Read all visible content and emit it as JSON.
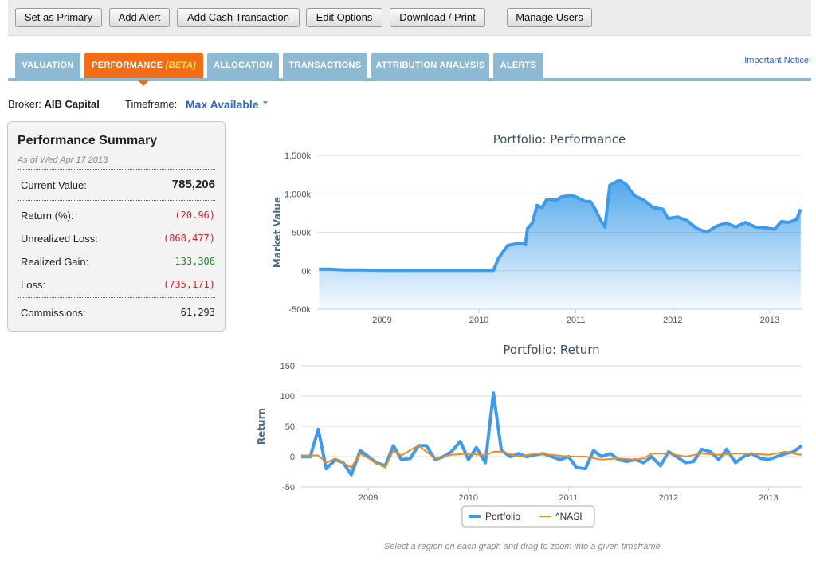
{
  "toolbar": {
    "buttons": [
      "Set as Primary",
      "Add Alert",
      "Add Cash Transaction",
      "Edit Options",
      "Download / Print",
      "Manage Users"
    ]
  },
  "tabs": [
    {
      "label": "VALUATION",
      "active": false
    },
    {
      "label": "PERFORMANCE",
      "badge": "(BETA)",
      "active": true
    },
    {
      "label": "ALLOCATION",
      "active": false
    },
    {
      "label": "TRANSACTIONS",
      "active": false
    },
    {
      "label": "ATTRIBUTION ANALYSIS",
      "active": false
    },
    {
      "label": "ALERTS",
      "active": false
    }
  ],
  "important_notice": "Important Notice!",
  "broker": {
    "label": "Broker:",
    "value": "AIB Capital"
  },
  "timeframe": {
    "label": "Timeframe:",
    "value": "Max Available"
  },
  "summary": {
    "title": "Performance Summary",
    "as_of": "As of Wed Apr 17 2013",
    "current_value_label": "Current Value:",
    "current_value": "785,206",
    "rows": [
      {
        "label": "Return (%):",
        "value": "(20.96)",
        "tone": "neg"
      },
      {
        "label": "Unrealized Loss:",
        "value": "(868,477)",
        "tone": "neg"
      },
      {
        "label": "Realized Gain:",
        "value": "133,306",
        "tone": "pos"
      },
      {
        "label": "Loss:",
        "value": "(735,171)",
        "tone": "neg"
      }
    ],
    "commissions_label": "Commissions:",
    "commissions": "61,293"
  },
  "colors": {
    "portfolio": "#3d9be9",
    "nasi": "#f0891e",
    "accent": "#f36c16",
    "tab": "#8eb9d3",
    "neg": "#d8202a",
    "pos": "#1f8c1f"
  },
  "hint": "Select a region on each graph and drag to zoom into a given timeframe",
  "chart_data": [
    {
      "type": "area",
      "title": "Portfolio: Performance",
      "xlabel": "",
      "ylabel": "Market Value",
      "ylim": [
        -500000,
        1500000
      ],
      "yticks": [
        -500000,
        0,
        500000,
        1000000,
        1500000
      ],
      "ytick_labels": [
        "-500k",
        "0k",
        "500k",
        "1,000k",
        "1,500k"
      ],
      "xlim": [
        2008.33,
        2013.33
      ],
      "xticks": [
        2009,
        2010,
        2011,
        2012,
        2013
      ],
      "xtick_labels": [
        "2009",
        "2010",
        "2011",
        "2012",
        "2013"
      ],
      "grid": true,
      "series": [
        {
          "name": "Portfolio",
          "x": [
            2008.35,
            2008.45,
            2008.6,
            2008.8,
            2009.0,
            2009.3,
            2009.6,
            2009.9,
            2010.1,
            2010.15,
            2010.2,
            2010.25,
            2010.3,
            2010.38,
            2010.45,
            2010.48,
            2010.5,
            2010.55,
            2010.6,
            2010.65,
            2010.7,
            2010.8,
            2010.85,
            2010.95,
            2011.0,
            2011.1,
            2011.15,
            2011.2,
            2011.25,
            2011.3,
            2011.35,
            2011.45,
            2011.52,
            2011.6,
            2011.7,
            2011.8,
            2011.9,
            2011.95,
            2012.05,
            2012.15,
            2012.25,
            2012.35,
            2012.45,
            2012.55,
            2012.65,
            2012.75,
            2012.85,
            2012.95,
            2013.05,
            2013.12,
            2013.2,
            2013.28,
            2013.32
          ],
          "y": [
            20000,
            20000,
            10000,
            10000,
            5000,
            5000,
            5000,
            5000,
            5000,
            5000,
            160000,
            250000,
            330000,
            350000,
            350000,
            340000,
            550000,
            620000,
            850000,
            820000,
            930000,
            920000,
            960000,
            980000,
            960000,
            900000,
            900000,
            800000,
            670000,
            570000,
            1110000,
            1180000,
            1120000,
            980000,
            920000,
            820000,
            800000,
            680000,
            700000,
            650000,
            550000,
            500000,
            580000,
            620000,
            570000,
            630000,
            570000,
            560000,
            540000,
            640000,
            630000,
            670000,
            800000
          ]
        }
      ]
    },
    {
      "type": "line",
      "title": "Portfolio: Return",
      "xlabel": "",
      "ylabel": "Return",
      "ylim": [
        -50,
        150
      ],
      "yticks": [
        -50,
        0,
        50,
        100,
        150
      ],
      "ytick_labels": [
        "-50",
        "0",
        "50",
        "100",
        "150"
      ],
      "xlim": [
        2008.33,
        2013.33
      ],
      "xticks": [
        2009,
        2010,
        2011,
        2012,
        2013
      ],
      "xtick_labels": [
        "2009",
        "2010",
        "2011",
        "2012",
        "2013"
      ],
      "legend": "bottom-center",
      "grid": true,
      "series": [
        {
          "name": "Portfolio",
          "x": [
            2008.33,
            2008.42,
            2008.5,
            2008.58,
            2008.67,
            2008.75,
            2008.83,
            2008.92,
            2009.0,
            2009.08,
            2009.17,
            2009.25,
            2009.33,
            2009.42,
            2009.5,
            2009.58,
            2009.67,
            2009.75,
            2009.83,
            2009.92,
            2010.0,
            2010.08,
            2010.17,
            2010.25,
            2010.33,
            2010.42,
            2010.5,
            2010.58,
            2010.67,
            2010.75,
            2010.83,
            2010.92,
            2011.0,
            2011.08,
            2011.17,
            2011.25,
            2011.33,
            2011.42,
            2011.5,
            2011.58,
            2011.67,
            2011.75,
            2011.83,
            2011.92,
            2012.0,
            2012.08,
            2012.17,
            2012.25,
            2012.33,
            2012.42,
            2012.5,
            2012.58,
            2012.67,
            2012.75,
            2012.83,
            2012.92,
            2013.0,
            2013.08,
            2013.17,
            2013.25,
            2013.33
          ],
          "y": [
            0,
            0,
            45,
            -20,
            -5,
            -10,
            -30,
            10,
            0,
            -10,
            -15,
            18,
            -5,
            -3,
            18,
            18,
            -5,
            0,
            8,
            25,
            -5,
            15,
            -10,
            105,
            10,
            0,
            5,
            0,
            3,
            5,
            0,
            -5,
            0,
            -18,
            -20,
            10,
            0,
            5,
            -5,
            -8,
            -5,
            -10,
            0,
            -15,
            8,
            0,
            -10,
            -8,
            12,
            8,
            -5,
            12,
            -10,
            0,
            5,
            -3,
            -5,
            0,
            5,
            8,
            18
          ]
        },
        {
          "name": "^NASI",
          "x": [
            2008.33,
            2008.5,
            2008.58,
            2008.67,
            2008.83,
            2008.92,
            2009.08,
            2009.17,
            2009.25,
            2009.33,
            2009.5,
            2009.67,
            2009.83,
            2010.0,
            2010.17,
            2010.25,
            2010.33,
            2010.5,
            2010.67,
            2010.83,
            2011.0,
            2011.17,
            2011.33,
            2011.5,
            2011.67,
            2011.75,
            2011.83,
            2012.0,
            2012.17,
            2012.33,
            2012.5,
            2012.67,
            2012.83,
            2013.0,
            2013.17,
            2013.25,
            2013.33
          ],
          "y": [
            2,
            2,
            -10,
            -3,
            -18,
            5,
            -10,
            -18,
            10,
            2,
            18,
            -3,
            3,
            5,
            2,
            8,
            8,
            0,
            5,
            3,
            0,
            0,
            -5,
            -3,
            -5,
            -3,
            5,
            5,
            0,
            5,
            3,
            5,
            5,
            3,
            8,
            5,
            3
          ]
        }
      ]
    }
  ]
}
